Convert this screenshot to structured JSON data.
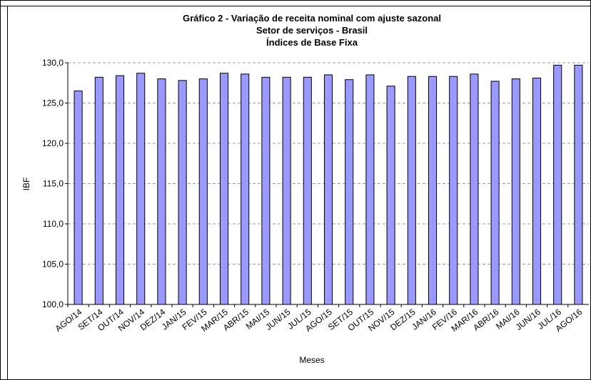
{
  "chart_data": {
    "type": "bar",
    "title": "Gráfico 2 - Variação de receita nominal com ajuste sazonal",
    "subtitle": "Setor de serviços - Brasil",
    "subtitle2": "Índices de Base Fixa",
    "x_label": "Meses",
    "y_label": "IBF",
    "categories": [
      "AGO/14",
      "SET/14",
      "OUT/14",
      "NOV/14",
      "DEZ/14",
      "JAN/15",
      "FEV/15",
      "MAR/15",
      "ABR/15",
      "MAI/15",
      "JUN/15",
      "JUL/15",
      "AGO/15",
      "SET/15",
      "OUT/15",
      "NOV/15",
      "DEZ/15",
      "JAN/16",
      "FEV/16",
      "MAR/16",
      "ABR/16",
      "MAI/16",
      "JUN/16",
      "JUL/16",
      "AGO/16"
    ],
    "values": [
      126.5,
      128.2,
      128.4,
      128.7,
      128.0,
      127.8,
      128.0,
      128.7,
      128.6,
      128.2,
      128.2,
      128.2,
      128.5,
      127.9,
      128.5,
      127.1,
      128.3,
      128.3,
      128.3,
      128.6,
      127.7,
      128.0,
      128.1,
      129.7,
      129.7
    ],
    "color": "#9999ff",
    "ylim": [
      100,
      130
    ],
    "yticks": [
      {
        "value": 100,
        "label": "100,0"
      },
      {
        "value": 105,
        "label": "105,0"
      },
      {
        "value": 110,
        "label": "110,0"
      },
      {
        "value": 115,
        "label": "115,0"
      },
      {
        "value": 120,
        "label": "120,0"
      },
      {
        "value": 125,
        "label": "125,0"
      },
      {
        "value": 130,
        "label": "130,0"
      }
    ],
    "grid": true
  }
}
